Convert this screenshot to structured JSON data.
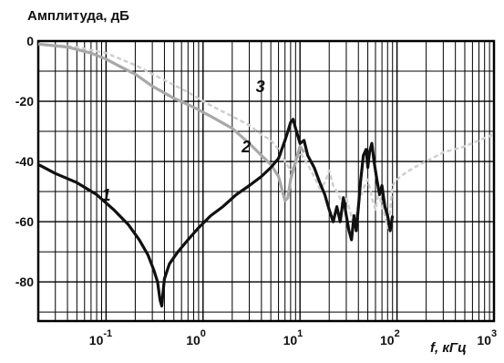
{
  "chart_data": {
    "type": "line",
    "title": "",
    "ylabel": "Амплитуда, дБ",
    "xlabel": "f, кГц",
    "x_scale": "log",
    "xlim": [
      0.02,
      1000
    ],
    "ylim": [
      -93,
      0
    ],
    "grid": true,
    "y_ticks": [
      {
        "value": 0,
        "label": "0"
      },
      {
        "value": -20,
        "label": "-20"
      },
      {
        "value": -40,
        "label": "-40"
      },
      {
        "value": -60,
        "label": "-60"
      },
      {
        "value": -80,
        "label": "-80"
      }
    ],
    "x_ticks": [
      {
        "value": 0.1,
        "base": "10",
        "exp": "-1"
      },
      {
        "value": 1,
        "base": "10",
        "exp": "0"
      },
      {
        "value": 10,
        "base": "10",
        "exp": "1"
      },
      {
        "value": 100,
        "base": "10",
        "exp": "2"
      },
      {
        "value": 1000,
        "base": "10",
        "exp": "3"
      }
    ],
    "series": [
      {
        "label": "1",
        "color": "#111111",
        "label_at": [
          0.09,
          -53
        ],
        "points": [
          [
            0.02,
            -41
          ],
          [
            0.03,
            -44
          ],
          [
            0.05,
            -47
          ],
          [
            0.08,
            -51
          ],
          [
            0.12,
            -56
          ],
          [
            0.17,
            -61
          ],
          [
            0.22,
            -66
          ],
          [
            0.27,
            -71
          ],
          [
            0.31,
            -76
          ],
          [
            0.34,
            -80
          ],
          [
            0.36,
            -86
          ],
          [
            0.375,
            -88
          ],
          [
            0.385,
            -84
          ],
          [
            0.4,
            -79
          ],
          [
            0.45,
            -74
          ],
          [
            0.55,
            -70
          ],
          [
            0.7,
            -66
          ],
          [
            0.9,
            -62
          ],
          [
            1.2,
            -58
          ],
          [
            1.6,
            -55
          ],
          [
            2.2,
            -51
          ],
          [
            3,
            -48
          ],
          [
            4,
            -45
          ],
          [
            5,
            -42
          ],
          [
            6,
            -39
          ],
          [
            7,
            -33
          ],
          [
            7.5,
            -30
          ],
          [
            8,
            -27
          ],
          [
            8.5,
            -26
          ],
          [
            9,
            -29
          ],
          [
            10,
            -34
          ],
          [
            11,
            -33
          ],
          [
            12,
            -38
          ],
          [
            14,
            -42
          ],
          [
            16,
            -47
          ],
          [
            18,
            -51
          ],
          [
            20,
            -56
          ],
          [
            22,
            -60
          ],
          [
            24,
            -55
          ],
          [
            26,
            -60
          ],
          [
            28,
            -52
          ],
          [
            30,
            -58
          ],
          [
            32,
            -63
          ],
          [
            34,
            -66
          ],
          [
            36,
            -58
          ],
          [
            38,
            -63
          ],
          [
            40,
            -55
          ],
          [
            42,
            -47
          ],
          [
            45,
            -38
          ],
          [
            48,
            -36
          ],
          [
            50,
            -42
          ],
          [
            52,
            -37
          ],
          [
            55,
            -34
          ],
          [
            58,
            -40
          ],
          [
            62,
            -46
          ],
          [
            66,
            -51
          ],
          [
            70,
            -48
          ],
          [
            75,
            -55
          ],
          [
            80,
            -58
          ],
          [
            85,
            -63
          ],
          [
            90,
            -58
          ]
        ]
      },
      {
        "label": "2",
        "color": "#a8a8a8",
        "label_at": [
          2.5,
          -37
        ],
        "points": [
          [
            0.02,
            -1
          ],
          [
            0.04,
            -2
          ],
          [
            0.07,
            -4
          ],
          [
            0.1,
            -6
          ],
          [
            0.15,
            -9
          ],
          [
            0.2,
            -11
          ],
          [
            0.3,
            -15
          ],
          [
            0.5,
            -19
          ],
          [
            0.8,
            -22
          ],
          [
            1.2,
            -25
          ],
          [
            2,
            -29
          ],
          [
            3,
            -34
          ],
          [
            4,
            -38
          ],
          [
            5,
            -41
          ],
          [
            6,
            -45
          ],
          [
            7,
            -53
          ],
          [
            7.5,
            -52
          ],
          [
            8,
            -46
          ],
          [
            9,
            -40
          ],
          [
            10,
            -35
          ],
          [
            11,
            -37
          ]
        ]
      },
      {
        "label": "3",
        "color": "#cfcfcf",
        "dashed": true,
        "label_at": [
          3.5,
          -17
        ],
        "points": [
          [
            0.02,
            -1
          ],
          [
            0.05,
            -2
          ],
          [
            0.1,
            -4
          ],
          [
            0.2,
            -8
          ],
          [
            0.4,
            -13
          ],
          [
            0.7,
            -17
          ],
          [
            1,
            -20
          ],
          [
            1.5,
            -23
          ],
          [
            2,
            -25
          ],
          [
            3,
            -28
          ],
          [
            4,
            -31
          ],
          [
            5,
            -33
          ],
          [
            6,
            -36
          ],
          [
            7,
            -40
          ],
          [
            8,
            -43
          ],
          [
            9,
            -41
          ],
          [
            10,
            -37
          ],
          [
            11,
            -39
          ],
          [
            12,
            -41
          ],
          [
            14,
            -45
          ],
          [
            16,
            -49
          ],
          [
            18,
            -47
          ],
          [
            20,
            -43
          ],
          [
            22,
            -48
          ],
          [
            25,
            -51
          ],
          [
            28,
            -55
          ],
          [
            30,
            -52
          ],
          [
            33,
            -57
          ],
          [
            36,
            -61
          ],
          [
            40,
            -54
          ],
          [
            45,
            -49
          ],
          [
            50,
            -46
          ],
          [
            55,
            -52
          ],
          [
            60,
            -56
          ],
          [
            65,
            -50
          ],
          [
            70,
            -55
          ],
          [
            75,
            -58
          ],
          [
            80,
            -62
          ],
          [
            85,
            -56
          ],
          [
            90,
            -48
          ],
          [
            100,
            -46
          ],
          [
            120,
            -44
          ],
          [
            150,
            -42
          ],
          [
            200,
            -40
          ],
          [
            300,
            -37
          ],
          [
            500,
            -35
          ],
          [
            700,
            -33
          ],
          [
            1000,
            -31
          ]
        ]
      }
    ]
  }
}
